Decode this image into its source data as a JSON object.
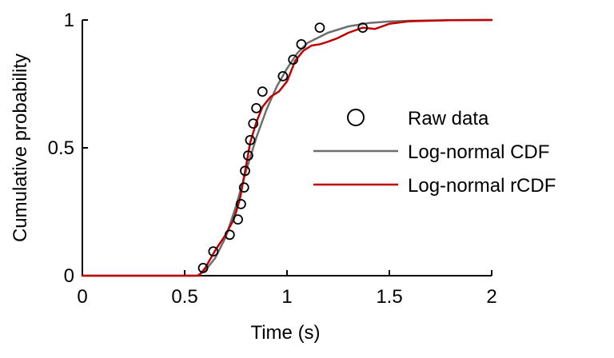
{
  "chart_data": {
    "type": "line",
    "title": "",
    "xlabel": "Time (s)",
    "ylabel": "Cumulative probability",
    "xlim": [
      0,
      2
    ],
    "ylim": [
      0,
      1
    ],
    "xticks": [
      0,
      0.5,
      1,
      1.5,
      2
    ],
    "xtick_labels": [
      "0",
      "0.5",
      "1",
      "1.5",
      "2"
    ],
    "yticks": [
      0,
      0.5,
      1
    ],
    "ytick_labels": [
      "0",
      "0.5",
      "1"
    ],
    "grid": false,
    "legend_position": "right",
    "series": [
      {
        "name": "Raw data",
        "kind": "scatter",
        "marker": "open-circle",
        "color": "#000000",
        "x": [
          0.59,
          0.64,
          0.72,
          0.76,
          0.775,
          0.79,
          0.795,
          0.81,
          0.82,
          0.835,
          0.85,
          0.88,
          0.98,
          1.03,
          1.07,
          1.16,
          1.37
        ],
        "y": [
          0.03,
          0.095,
          0.16,
          0.22,
          0.28,
          0.345,
          0.41,
          0.47,
          0.53,
          0.595,
          0.655,
          0.72,
          0.78,
          0.845,
          0.905,
          0.97,
          0.97
        ]
      },
      {
        "name": "Log-normal CDF",
        "kind": "line",
        "color": "#6e6e6e",
        "x": [
          0,
          0.56,
          0.6,
          0.65,
          0.7,
          0.75,
          0.8,
          0.85,
          0.9,
          0.95,
          1.0,
          1.05,
          1.1,
          1.2,
          1.3,
          1.4,
          1.5,
          1.6,
          1.8,
          2.0
        ],
        "y": [
          0,
          0,
          0.02,
          0.07,
          0.15,
          0.27,
          0.41,
          0.54,
          0.65,
          0.74,
          0.81,
          0.87,
          0.91,
          0.95,
          0.975,
          0.988,
          0.994,
          0.997,
          0.999,
          1.0
        ]
      },
      {
        "name": "Log-normal rCDF",
        "kind": "line",
        "color": "#c00000",
        "x": [
          0,
          0.57,
          0.6,
          0.65,
          0.7,
          0.74,
          0.77,
          0.8,
          0.82,
          0.85,
          0.88,
          0.92,
          0.96,
          1.0,
          1.04,
          1.08,
          1.12,
          1.16,
          1.2,
          1.25,
          1.3,
          1.37,
          1.43,
          1.5,
          1.6,
          1.8,
          2.0
        ],
        "y": [
          0,
          0,
          0.03,
          0.1,
          0.16,
          0.22,
          0.3,
          0.43,
          0.52,
          0.6,
          0.66,
          0.7,
          0.72,
          0.76,
          0.84,
          0.88,
          0.9,
          0.905,
          0.915,
          0.93,
          0.95,
          0.97,
          0.965,
          0.985,
          0.995,
          0.999,
          1.0
        ]
      }
    ]
  }
}
